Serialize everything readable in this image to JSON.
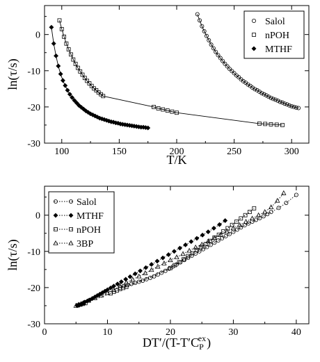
{
  "chart_data": [
    {
      "type": "scatter",
      "xlabel": "T/K",
      "ylabel": "ln(τ/s)",
      "xlim": [
        85,
        315
      ],
      "ylim": [
        -30,
        8
      ],
      "xticks": [
        100,
        150,
        200,
        250,
        300
      ],
      "yticks": [
        0,
        -10,
        -20,
        -30
      ],
      "legend_position": "top-right",
      "fit_lines": true,
      "series": [
        {
          "name": "Salol",
          "marker": "open-circle",
          "x": [
            218,
            220,
            222,
            224,
            226,
            228,
            230,
            232,
            234,
            236,
            238,
            240,
            242,
            244,
            246,
            248,
            250,
            252,
            254,
            256,
            258,
            260,
            262,
            264,
            266,
            268,
            270,
            272,
            274,
            276,
            278,
            280,
            282,
            284,
            286,
            288,
            290,
            292,
            294,
            296,
            298,
            300,
            302,
            304,
            306
          ],
          "y": [
            5.6,
            3.9,
            2.3,
            0.9,
            -0.4,
            -1.6,
            -2.8,
            -3.8,
            -4.8,
            -5.7,
            -6.5,
            -7.3,
            -8.1,
            -8.8,
            -9.5,
            -10.1,
            -10.7,
            -11.3,
            -11.8,
            -12.4,
            -12.9,
            -13.3,
            -13.8,
            -14.2,
            -14.7,
            -15.1,
            -15.4,
            -15.8,
            -16.2,
            -16.5,
            -16.8,
            -17.2,
            -17.5,
            -17.8,
            -18.0,
            -18.3,
            -18.6,
            -18.8,
            -19.1,
            -19.3,
            -19.6,
            -19.8,
            -20.0,
            -20.2,
            -20.3
          ]
        },
        {
          "name": "nPOH",
          "marker": "open-square",
          "x": [
            98,
            100,
            102,
            104,
            106,
            108,
            110,
            112,
            114,
            116,
            118,
            120,
            122,
            124,
            126,
            128,
            130,
            132,
            134,
            136,
            180,
            184,
            188,
            192,
            196,
            200,
            272,
            277,
            282,
            287,
            292
          ],
          "y": [
            3.9,
            1.5,
            -0.6,
            -2.5,
            -4.1,
            -5.5,
            -6.9,
            -8.1,
            -9.2,
            -10.2,
            -11.1,
            -12.0,
            -12.8,
            -13.5,
            -14.2,
            -14.9,
            -15.4,
            -16.0,
            -16.5,
            -17.0,
            -20.0,
            -20.4,
            -20.7,
            -21.0,
            -21.3,
            -21.6,
            -24.6,
            -24.7,
            -24.8,
            -24.9,
            -25.0
          ]
        },
        {
          "name": "MTHF",
          "marker": "filled-diamond",
          "x": [
            91,
            93,
            95,
            97,
            99,
            101,
            103,
            105,
            107,
            109,
            111,
            113,
            115,
            117,
            119,
            121,
            123,
            125,
            127,
            129,
            131,
            133,
            135,
            137,
            139,
            141,
            143,
            145,
            147,
            149,
            151,
            153,
            155,
            157,
            159,
            161,
            163,
            165,
            167,
            169,
            171,
            173,
            175
          ],
          "y": [
            2.0,
            -2.5,
            -5.9,
            -8.7,
            -10.9,
            -12.7,
            -14.1,
            -15.4,
            -16.5,
            -17.4,
            -18.2,
            -18.9,
            -19.6,
            -20.1,
            -20.6,
            -21.1,
            -21.5,
            -21.9,
            -22.2,
            -22.5,
            -22.8,
            -23.1,
            -23.3,
            -23.5,
            -23.7,
            -23.9,
            -24.1,
            -24.2,
            -24.4,
            -24.5,
            -24.7,
            -24.8,
            -24.9,
            -25.0,
            -25.1,
            -25.2,
            -25.3,
            -25.4,
            -25.5,
            -25.6,
            -25.6,
            -25.7,
            -25.8
          ]
        }
      ]
    },
    {
      "type": "scatter",
      "xlabel_main": "DT′/(T-T′C",
      "xlabel_sub": "P",
      "xlabel_sup": "ex",
      "xlabel_close": ")",
      "ylabel": "ln(τ/s)",
      "xlim": [
        0,
        42
      ],
      "ylim": [
        -30,
        8
      ],
      "xticks": [
        0,
        10,
        20,
        30,
        40
      ],
      "yticks": [
        0,
        -10,
        -20,
        -30
      ],
      "legend_position": "top-left",
      "dotted_lines": true,
      "series": [
        {
          "name": "Salol",
          "marker": "open-circle",
          "x": [
            12.0,
            12.6,
            13.2,
            13.8,
            14.4,
            15.0,
            15.6,
            16.2,
            16.8,
            17.4,
            18.0,
            18.6,
            19.2,
            19.8,
            20.4,
            21.0,
            21.6,
            22.2,
            22.8,
            23.4,
            24.0,
            24.6,
            25.2,
            25.8,
            26.4,
            27.0,
            27.6,
            28.2,
            28.8,
            29.4,
            30.0,
            30.6,
            31.2,
            31.8,
            32.4,
            33.0,
            33.6,
            34.2,
            34.8,
            35.4,
            36.0,
            37.2,
            38.4,
            40.0
          ],
          "y": [
            -20.0,
            -19.6,
            -19.3,
            -19.0,
            -18.7,
            -18.4,
            -18.1,
            -17.7,
            -17.3,
            -16.9,
            -16.4,
            -15.9,
            -15.4,
            -14.8,
            -14.2,
            -13.6,
            -13.0,
            -12.4,
            -11.8,
            -11.2,
            -10.6,
            -10.0,
            -9.4,
            -8.8,
            -8.2,
            -7.6,
            -7.0,
            -6.4,
            -5.8,
            -5.2,
            -4.6,
            -4.0,
            -3.4,
            -2.8,
            -2.3,
            -1.8,
            -1.3,
            -0.8,
            -0.3,
            0.3,
            0.9,
            2.0,
            3.4,
            5.6
          ]
        },
        {
          "name": "MTHF",
          "marker": "filled-diamond",
          "x": [
            5.2,
            5.5,
            5.8,
            6.1,
            6.4,
            6.8,
            7.2,
            7.6,
            8.0,
            8.4,
            8.8,
            9.2,
            9.6,
            10.0,
            10.5,
            11.0,
            11.6,
            12.2,
            12.9,
            13.6,
            14.4,
            15.2,
            16.1,
            17.0,
            17.9,
            18.8,
            19.7,
            20.6,
            21.5,
            22.4,
            23.3,
            24.2,
            25.1,
            26.0,
            26.9,
            27.8,
            28.7
          ],
          "y": [
            -25.0,
            -24.8,
            -24.6,
            -24.3,
            -24.0,
            -23.7,
            -23.4,
            -23.0,
            -22.6,
            -22.2,
            -21.8,
            -21.4,
            -21.0,
            -20.6,
            -20.1,
            -19.6,
            -19.0,
            -18.4,
            -17.7,
            -17.0,
            -16.2,
            -15.4,
            -14.5,
            -13.6,
            -12.7,
            -11.8,
            -10.9,
            -10.0,
            -9.1,
            -8.2,
            -7.3,
            -6.4,
            -5.5,
            -4.6,
            -3.6,
            -2.6,
            -1.5
          ]
        },
        {
          "name": "nPOH",
          "marker": "open-square",
          "x": [
            5.3,
            5.7,
            6.1,
            6.5,
            10.5,
            11.0,
            11.5,
            12.0,
            12.5,
            13.0,
            20.0,
            20.7,
            21.4,
            22.1,
            22.8,
            23.5,
            24.2,
            24.9,
            25.6,
            26.3,
            27.0,
            27.7,
            28.4,
            29.1,
            29.8,
            30.5,
            31.2,
            31.9,
            32.6,
            33.3
          ],
          "y": [
            -24.9,
            -24.7,
            -24.5,
            -24.3,
            -21.6,
            -21.2,
            -20.8,
            -20.4,
            -20.1,
            -19.8,
            -14.6,
            -13.8,
            -13.0,
            -12.2,
            -11.3,
            -10.5,
            -9.6,
            -8.8,
            -8.0,
            -7.1,
            -6.2,
            -5.4,
            -4.5,
            -3.6,
            -2.7,
            -1.8,
            -0.9,
            0.0,
            0.9,
            1.9
          ]
        },
        {
          "name": "3BP",
          "marker": "open-triangle",
          "x": [
            5.0,
            5.4,
            5.8,
            6.2,
            7.0,
            8.0,
            9.0,
            10.0,
            11.0,
            12.0,
            13.0,
            14.0,
            15.0,
            16.0,
            17.0,
            18.0,
            19.0,
            20.0,
            21.0,
            22.0,
            23.0,
            24.0,
            25.0,
            26.0,
            27.0,
            28.0,
            29.0,
            30.0,
            31.0,
            32.0,
            33.0,
            34.0,
            35.0,
            36.0,
            37.0,
            38.0
          ],
          "y": [
            -25.0,
            -24.7,
            -24.5,
            -24.2,
            -23.6,
            -22.9,
            -22.2,
            -21.5,
            -20.6,
            -19.5,
            -18.6,
            -17.8,
            -16.9,
            -16.0,
            -15.1,
            -14.2,
            -13.3,
            -12.4,
            -11.6,
            -10.7,
            -9.8,
            -8.9,
            -8.1,
            -7.2,
            -6.3,
            -5.4,
            -4.5,
            -3.6,
            -2.7,
            -1.8,
            -0.9,
            0.0,
            0.9,
            2.2,
            4.0,
            6.1
          ]
        }
      ]
    }
  ]
}
